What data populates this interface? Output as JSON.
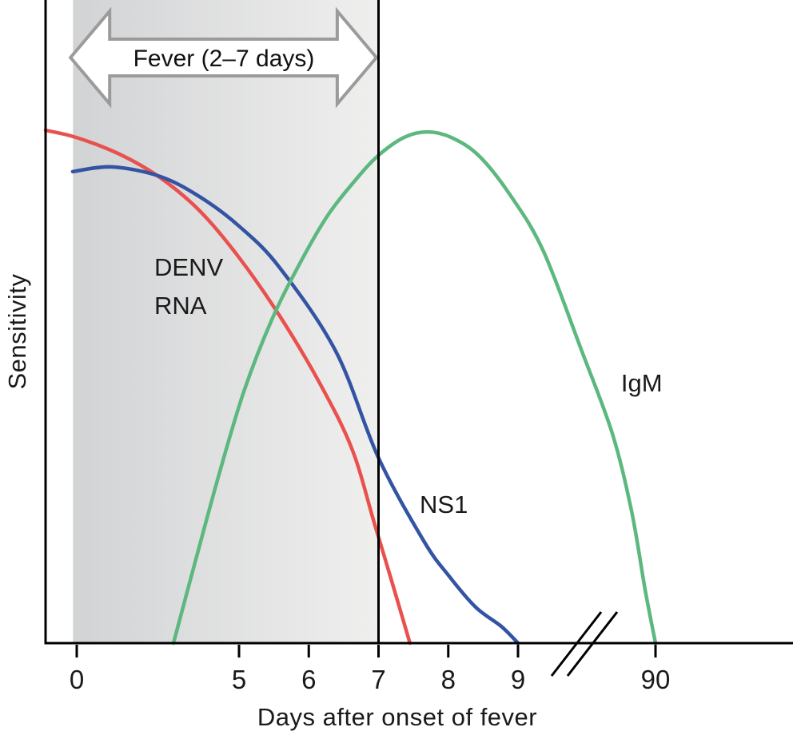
{
  "chart_data": {
    "type": "line",
    "title": "",
    "xlabel": "Days after onset of fever",
    "ylabel": "Sensitivity",
    "x_ticks": {
      "labels": [
        "0",
        "5",
        "6",
        "7",
        "8",
        "9",
        "90"
      ],
      "days": [
        0,
        5,
        6,
        7,
        8,
        9,
        90
      ]
    },
    "axis_break": {
      "between_days": [
        9,
        90
      ]
    },
    "y_axis": {
      "type": "qualitative",
      "range": [
        0,
        1
      ],
      "ticks": []
    },
    "fever_band": {
      "from_day": -0.12,
      "to_day": 7,
      "fill_from": "#d2d3d5",
      "fill_to": "#efefee"
    },
    "fever_arrow": {
      "label": "Fever (2–7 days)",
      "from_day": -0.2,
      "to_day": 6.97
    },
    "reference_line": {
      "at_day": 7
    },
    "series": [
      {
        "name": "DENV RNA",
        "color": "#e8514e",
        "points": [
          [
            -1.0,
            0.98
          ],
          [
            0,
            0.966
          ],
          [
            1.33,
            0.934
          ],
          [
            2.56,
            0.89
          ],
          [
            3.79,
            0.826
          ],
          [
            5.0,
            0.737
          ],
          [
            5.58,
            0.626
          ],
          [
            6.16,
            0.496
          ],
          [
            6.62,
            0.371
          ],
          [
            6.94,
            0.229
          ],
          [
            7.19,
            0.118
          ],
          [
            7.45,
            0.0
          ]
        ]
      },
      {
        "name": "NS1",
        "color": "#3353a3",
        "points": [
          [
            -0.13,
            0.901
          ],
          [
            1.08,
            0.91
          ],
          [
            2.56,
            0.892
          ],
          [
            3.79,
            0.853
          ],
          [
            5.0,
            0.797
          ],
          [
            5.58,
            0.718
          ],
          [
            6.39,
            0.557
          ],
          [
            7.0,
            0.354
          ],
          [
            7.65,
            0.195
          ],
          [
            8.0,
            0.13
          ],
          [
            8.39,
            0.069
          ],
          [
            8.76,
            0.032
          ],
          [
            9.05,
            0.0
          ]
        ]
      },
      {
        "name": "IgM",
        "color": "#5cb87f",
        "points": [
          [
            2.98,
            0.0
          ],
          [
            3.67,
            0.16
          ],
          [
            4.41,
            0.328
          ],
          [
            5.07,
            0.481
          ],
          [
            5.47,
            0.618
          ],
          [
            5.87,
            0.725
          ],
          [
            6.27,
            0.817
          ],
          [
            6.67,
            0.885
          ],
          [
            6.99,
            0.931
          ],
          [
            7.36,
            0.966
          ],
          [
            7.7,
            0.977
          ],
          [
            8.05,
            0.966
          ],
          [
            8.45,
            0.93
          ],
          [
            8.91,
            0.852
          ],
          [
            24.1,
            0.748
          ],
          [
            46.7,
            0.557
          ],
          [
            64.6,
            0.4
          ],
          [
            75.9,
            0.252
          ],
          [
            83.9,
            0.102
          ],
          [
            90.0,
            0.0
          ]
        ]
      }
    ],
    "annotations": [
      {
        "id": "denv-rna",
        "lines": [
          "DENV",
          "RNA"
        ],
        "day": 2.39,
        "s": 0.702
      },
      {
        "id": "ns1",
        "lines": [
          "NS1"
        ],
        "day": 7.59,
        "s": 0.249
      },
      {
        "id": "igm",
        "lines": [
          "IgM"
        ],
        "day": 69.7,
        "s": 0.481
      }
    ],
    "colors": {
      "axis": "#000000",
      "text": "#1a1a1a",
      "arrow_outline": "#9b9b9b",
      "arrow_fill": "#ffffff"
    }
  }
}
